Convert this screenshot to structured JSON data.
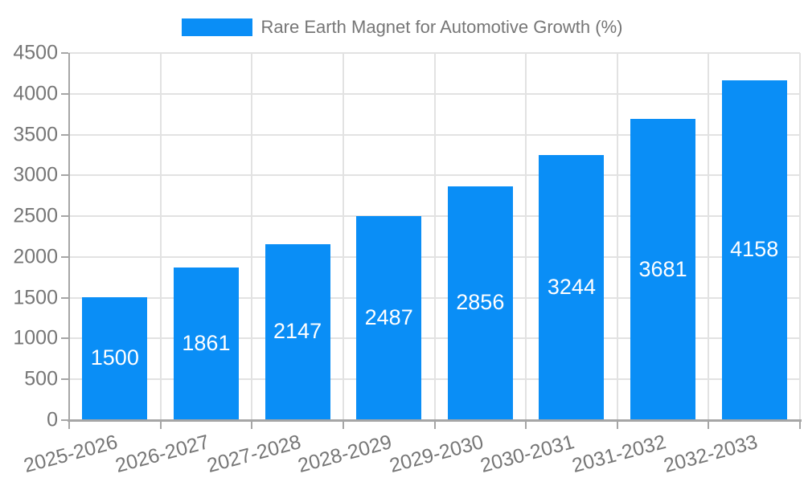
{
  "chart_data": {
    "type": "bar",
    "title": "Rare Earth Magnet for Automotive Growth (%)",
    "categories": [
      "2025-2026",
      "2026-2027",
      "2027-2028",
      "2028-2029",
      "2029-2030",
      "2030-2031",
      "2031-2032",
      "2032-2033"
    ],
    "series": [
      {
        "name": "Rare Earth Magnet for Automotive Growth (%)",
        "values": [
          1500,
          1861,
          2147,
          2487,
          2856,
          3244,
          3681,
          4158
        ]
      }
    ],
    "value_labels": [
      1500,
      1861,
      2147,
      2487,
      2856,
      3244,
      3681,
      4158
    ],
    "xlabel": "",
    "ylabel": "",
    "ylim": [
      0,
      4500
    ],
    "yticks": [
      0,
      500,
      1000,
      1500,
      2000,
      2500,
      3000,
      3500,
      4000,
      4500
    ],
    "grid": true,
    "legend_position": "top-center",
    "x_label_rotation_deg": 15,
    "colors": {
      "bar": "#0a8ef6",
      "grid": "#e2e2e2",
      "axis": "#a6a6a6",
      "tick_label": "#767676",
      "value_label": "#ffffff",
      "background": "#ffffff"
    }
  }
}
